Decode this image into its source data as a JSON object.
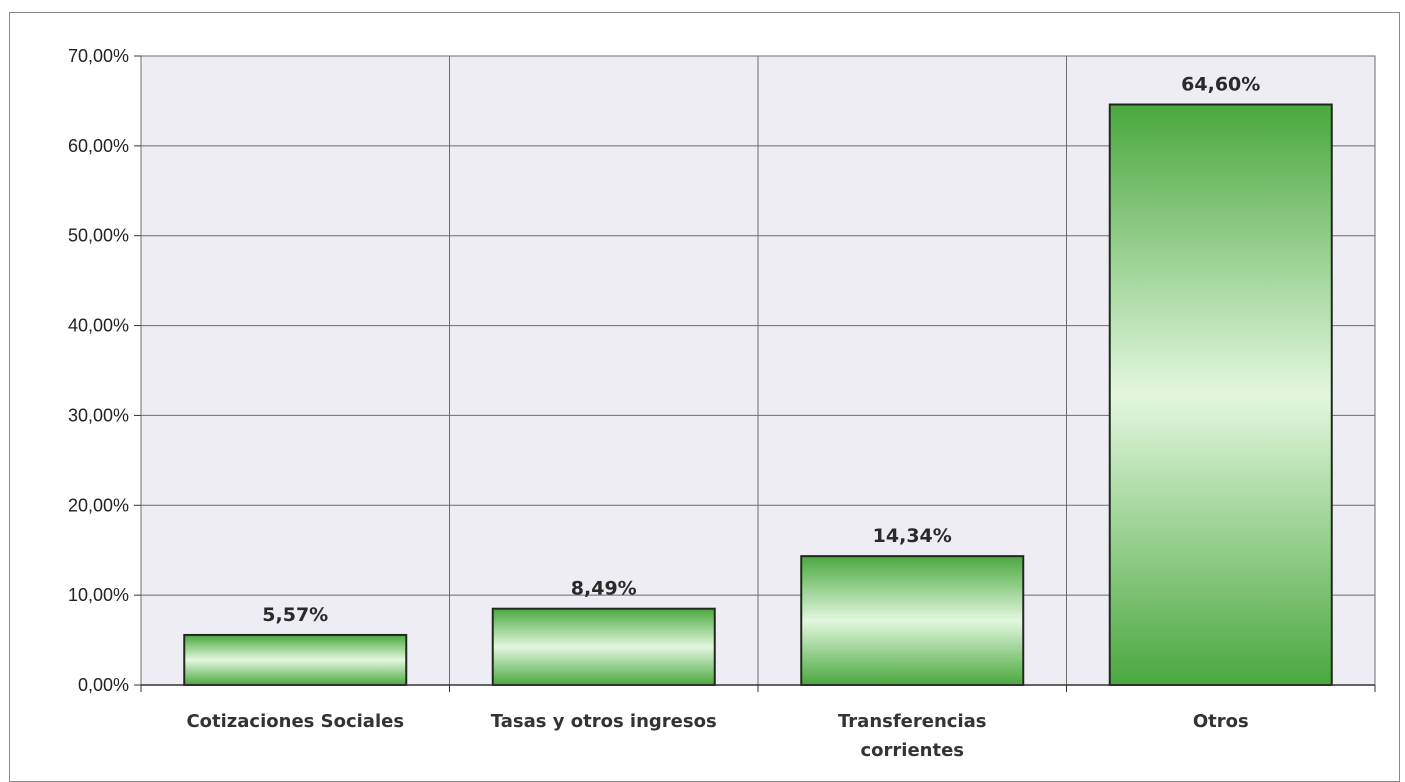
{
  "chart_data": {
    "type": "bar",
    "title": "",
    "xlabel": "",
    "ylabel": "",
    "categories": [
      [
        "Cotizaciones Sociales"
      ],
      [
        "Tasas y otros ingresos"
      ],
      [
        "Transferencias",
        "corrientes"
      ],
      [
        "Otros"
      ]
    ],
    "values": [
      5.57,
      8.49,
      14.34,
      64.6
    ],
    "data_labels": [
      "5,57%",
      "8,49%",
      "14,34%",
      "64,60%"
    ],
    "ylim": [
      0,
      70
    ],
    "yticks": [
      0,
      10,
      20,
      30,
      40,
      50,
      60,
      70
    ],
    "ytick_labels": [
      "0,00%",
      "10,00%",
      "20,00%",
      "30,00%",
      "40,00%",
      "50,00%",
      "60,00%",
      "70,00%"
    ],
    "grid": true,
    "legend": "none",
    "colors": {
      "bar_dark": "#4aa83e",
      "bar_light": "#e3f7df",
      "bar_outline": "#1f2a1c",
      "plot_background": "#ededf3",
      "gridline": "#6d6d6d"
    }
  }
}
